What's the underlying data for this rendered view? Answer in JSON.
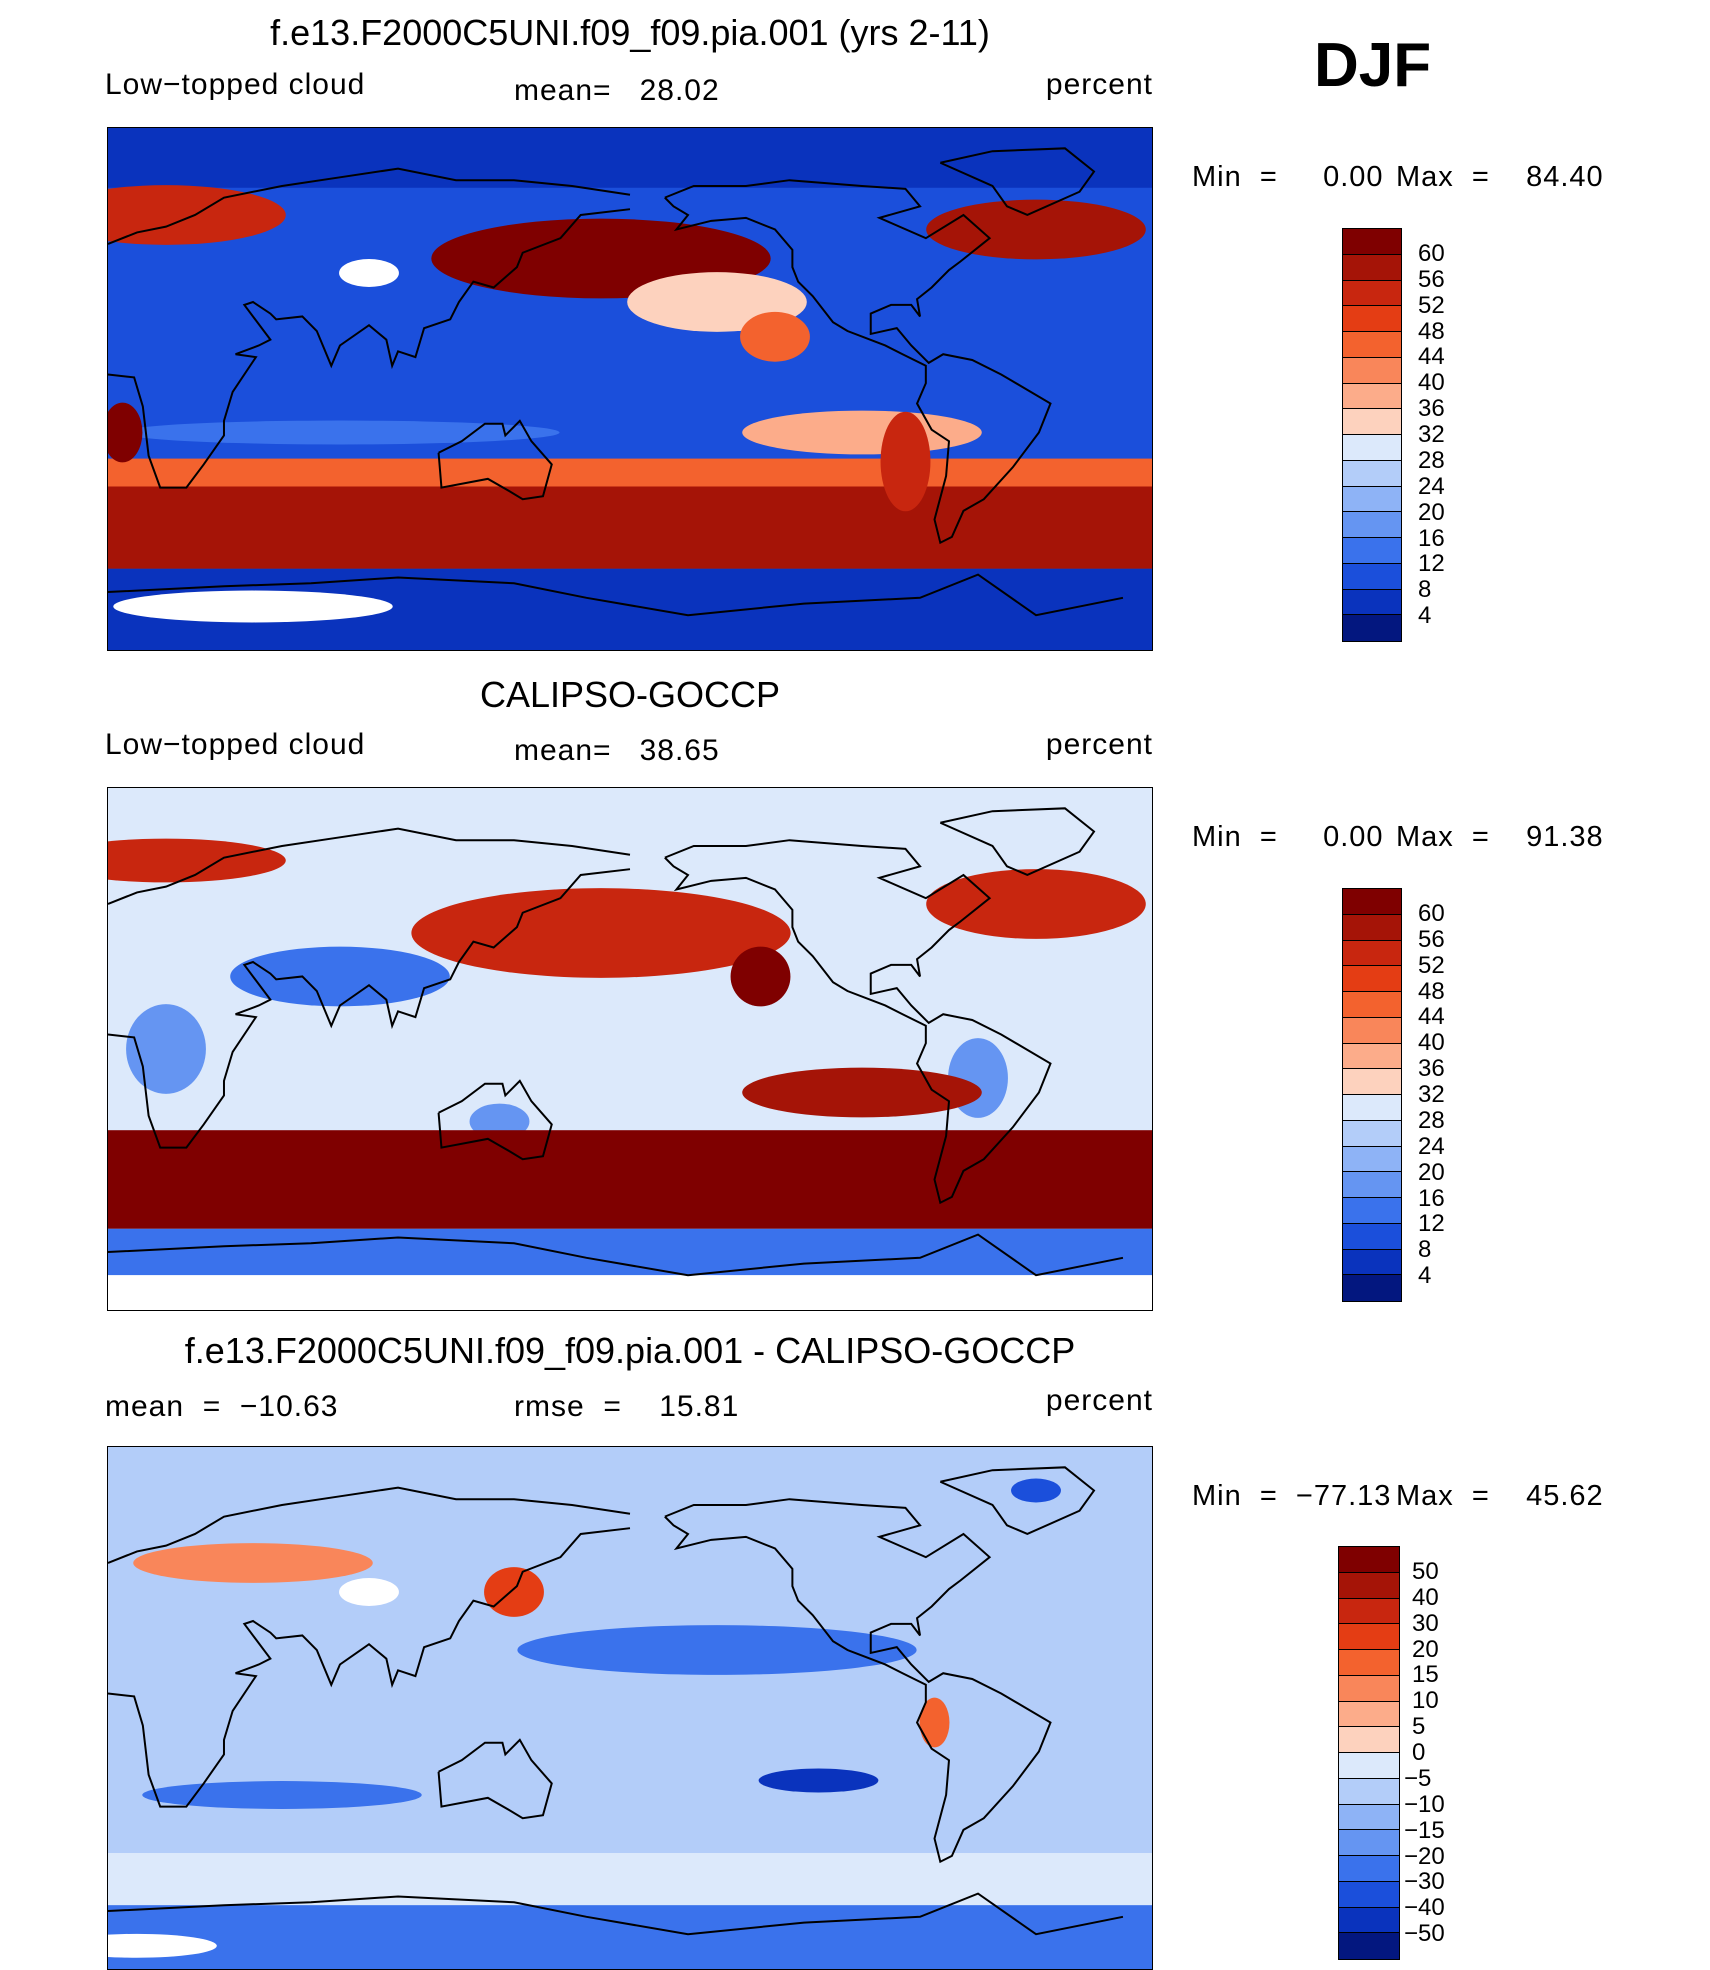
{
  "season": "DJF",
  "chart_data": [
    {
      "type": "heatmap",
      "title": "f.e13.F2000C5UNI.f09_f09.pia.001 (yrs 2-11)",
      "left_label": "Low−topped cloud",
      "center_label": "mean=   28.02",
      "units": "percent",
      "mean": 28.02,
      "min_label": "Min  =     0.00",
      "max_label": "Max  =    84.40",
      "min": 0.0,
      "max": 84.4,
      "legend_ticks": [
        "60",
        "56",
        "52",
        "48",
        "44",
        "40",
        "36",
        "32",
        "28",
        "24",
        "20",
        "16",
        "12",
        "8",
        "4"
      ],
      "legend_colors": [
        "#7f0000",
        "#a51407",
        "#c8260f",
        "#e43d14",
        "#f3622e",
        "#f9865a",
        "#fcac8a",
        "#fdd2be",
        "#dce9fb",
        "#b3cdf9",
        "#8eb3f6",
        "#6595f2",
        "#3a72ec",
        "#1b4fdb",
        "#0a33bd",
        "#03177f"
      ]
    },
    {
      "type": "heatmap",
      "title": "CALIPSO-GOCCP",
      "left_label": "Low−topped cloud",
      "center_label": "mean=   38.65",
      "units": "percent",
      "mean": 38.65,
      "min_label": "Min  =     0.00",
      "max_label": "Max  =    91.38",
      "min": 0.0,
      "max": 91.38,
      "legend_ticks": [
        "60",
        "56",
        "52",
        "48",
        "44",
        "40",
        "36",
        "32",
        "28",
        "24",
        "20",
        "16",
        "12",
        "8",
        "4"
      ],
      "legend_colors": [
        "#7f0000",
        "#a51407",
        "#c8260f",
        "#e43d14",
        "#f3622e",
        "#f9865a",
        "#fcac8a",
        "#fdd2be",
        "#dce9fb",
        "#b3cdf9",
        "#8eb3f6",
        "#6595f2",
        "#3a72ec",
        "#1b4fdb",
        "#0a33bd",
        "#03177f"
      ]
    },
    {
      "type": "heatmap",
      "title": "f.e13.F2000C5UNI.f09_f09.pia.001 - CALIPSO-GOCCP",
      "left_label": "mean  =  −10.63",
      "center_label": "rmse  =    15.81",
      "units": "percent",
      "mean": -10.63,
      "rmse": 15.81,
      "min_label": "Min  =  −77.13",
      "max_label": "Max  =    45.62",
      "min": -77.13,
      "max": 45.62,
      "legend_ticks": [
        "50",
        "40",
        "30",
        "20",
        "15",
        "10",
        "5",
        "0",
        "−5",
        "−10",
        "−15",
        "−20",
        "−30",
        "−40",
        "−50"
      ],
      "legend_colors": [
        "#7f0000",
        "#a51407",
        "#c8260f",
        "#e43d14",
        "#f3622e",
        "#f9865a",
        "#fcac8a",
        "#fdd2be",
        "#dce9fb",
        "#b3cdf9",
        "#8eb3f6",
        "#6595f2",
        "#3a72ec",
        "#1b4fdb",
        "#0a33bd",
        "#03177f"
      ]
    }
  ]
}
